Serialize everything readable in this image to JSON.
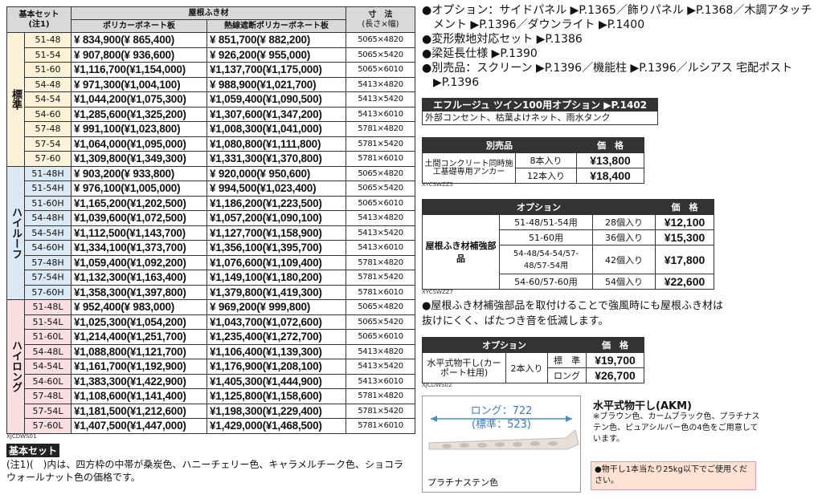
{
  "main_table": {
    "header": {
      "set": "基本セット",
      "note_ref": "(注1)",
      "roof": "屋根ふき材",
      "poly": "ポリカーボネート板",
      "heat": "熱線遮断ポリカーボネート板",
      "size": "寸　法",
      "size_unit": "(長さ×幅)"
    },
    "groups": [
      {
        "name": "標準",
        "rows": [
          [
            "51-48",
            "¥ 834,900(¥ 865,400)",
            "¥ 851,700(¥ 882,200)",
            "5065×4820"
          ],
          [
            "51-54",
            "¥ 907,800(¥ 936,600)",
            "¥ 926,200(¥ 955,000)",
            "5065×5420"
          ],
          [
            "51-60",
            "¥1,116,700(¥1,154,000)",
            "¥1,137,700(¥1,175,000)",
            "5065×6010"
          ],
          [
            "54-48",
            "¥ 971,300(¥1,004,100)",
            "¥ 988,900(¥1,021,700)",
            "5413×4820"
          ],
          [
            "54-54",
            "¥1,044,200(¥1,075,300)",
            "¥1,059,400(¥1,090,500)",
            "5413×5420"
          ],
          [
            "54-60",
            "¥1,285,600(¥1,325,200)",
            "¥1,307,600(¥1,347,200)",
            "5413×6010"
          ],
          [
            "57-48",
            "¥ 991,100(¥1,023,800)",
            "¥1,008,300(¥1,041,000)",
            "5781×4820"
          ],
          [
            "57-54",
            "¥1,064,000(¥1,095,000)",
            "¥1,080,800(¥1,111,800)",
            "5781×5420"
          ],
          [
            "57-60",
            "¥1,309,800(¥1,349,300)",
            "¥1,331,300(¥1,370,800)",
            "5781×6010"
          ]
        ]
      },
      {
        "name": "ハイルーフ",
        "rows": [
          [
            "51-48H",
            "¥ 903,200(¥ 933,800)",
            "¥ 920,000(¥ 950,600)",
            "5065×4820"
          ],
          [
            "51-54H",
            "¥ 976,100(¥1,005,000)",
            "¥ 994,500(¥1,023,400)",
            "5065×5420"
          ],
          [
            "51-60H",
            "¥1,165,200(¥1,202,500)",
            "¥1,186,200(¥1,223,500)",
            "5065×6010"
          ],
          [
            "54-48H",
            "¥1,039,600(¥1,072,500)",
            "¥1,057,200(¥1,090,100)",
            "5413×4820"
          ],
          [
            "54-54H",
            "¥1,112,500(¥1,143,700)",
            "¥1,127,700(¥1,158,900)",
            "5413×5420"
          ],
          [
            "54-60H",
            "¥1,334,100(¥1,373,700)",
            "¥1,356,100(¥1,395,700)",
            "5413×6010"
          ],
          [
            "57-48H",
            "¥1,059,400(¥1,092,200)",
            "¥1,076,600(¥1,109,400)",
            "5781×4820"
          ],
          [
            "57-54H",
            "¥1,132,300(¥1,163,400)",
            "¥1,149,100(¥1,180,200)",
            "5781×5420"
          ],
          [
            "57-60H",
            "¥1,358,300(¥1,397,800)",
            "¥1,379,800(¥1,419,300)",
            "5781×6010"
          ]
        ]
      },
      {
        "name": "ハイロング",
        "rows": [
          [
            "51-48L",
            "¥ 952,400(¥ 983,000)",
            "¥ 969,200(¥ 999,800)",
            "5065×4820"
          ],
          [
            "51-54L",
            "¥1,025,300(¥1,054,200)",
            "¥1,043,700(¥1,072,600)",
            "5065×5420"
          ],
          [
            "51-60L",
            "¥1,214,400(¥1,251,700)",
            "¥1,235,400(¥1,272,700)",
            "5065×6010"
          ],
          [
            "54-48L",
            "¥1,088,800(¥1,121,700)",
            "¥1,106,400(¥1,139,300)",
            "5413×4820"
          ],
          [
            "54-54L",
            "¥1,161,700(¥1,192,900)",
            "¥1,176,900(¥1,208,100)",
            "5413×5420"
          ],
          [
            "54-60L",
            "¥1,383,300(¥1,422,900)",
            "¥1,405,300(¥1,444,900)",
            "5413×6010"
          ],
          [
            "57-48L",
            "¥1,108,600(¥1,141,400)",
            "¥1,125,800(¥1,158,600)",
            "5781×4820"
          ],
          [
            "57-54L",
            "¥1,181,500(¥1,212,600)",
            "¥1,198,300(¥1,229,400)",
            "5781×5420"
          ],
          [
            "57-60L",
            "¥1,407,500(¥1,447,000)",
            "¥1,429,000(¥1,468,500)",
            "5781×6010"
          ]
        ]
      }
    ],
    "code": "XJCDWS01"
  },
  "basic_set_label": "基本セット",
  "note": "(注1)(　)内は、四方枠の中帯が桑炭色、ハニーチェリー色、キャラメルチーク色、ショコラウォールナット色の価格です。",
  "bullets": [
    "●オプション：サイドパネル ▶P.1365／飾りパネル ▶P.1368／木調アタッチメント ▶P.1396／ダウンライト ▶P.1400",
    "●変形敷地対応セット ▶P.1386",
    "●梁延長仕様 ▶P.1390",
    "●別売品：スクリーン ▶P.1396／機能柱 ▶P.1396／ルシアス 宅配ポスト ▶P.1396"
  ],
  "option_box": {
    "title": "エフルージュ ツイン100用オプション ▶P.1402",
    "body": "外部コンセント、枯葉よけネット、雨水タンク"
  },
  "anchor_table": {
    "header": "別売品",
    "price_header": "価　格",
    "label": "土間コンクリート同時施工基礎専用アンカー",
    "rows": [
      [
        "8本入り",
        "¥13,800"
      ],
      [
        "12本入り",
        "¥18,400"
      ]
    ],
    "code": "XYCSWZZ5"
  },
  "reinforce_table": {
    "header": "オプション",
    "price_header": "価　格",
    "label": "屋根ふき材補強部品",
    "rows": [
      [
        "51-48/51-54用",
        "28個入り",
        "¥12,100"
      ],
      [
        "51-60用",
        "36個入り",
        "¥15,300"
      ],
      [
        "54-48/54-54/57-48/57-54用",
        "42個入り",
        "¥17,800"
      ],
      [
        "54-60/57-60用",
        "54個入り",
        "¥22,600"
      ]
    ],
    "code": "XYCSWZZ7"
  },
  "reinforce_note": "●屋根ふき材補強部品を取付けることで強風時にも屋根ふき材は抜けにくく、ばたつき音を低減します。",
  "dryer_table": {
    "header": "オプション",
    "price_header": "価　格",
    "label": "水平式物干し(カーポート柱用)",
    "qty": "2本入り",
    "rows": [
      [
        "標　準",
        "¥19,700"
      ],
      [
        "ロング",
        "¥26,700"
      ]
    ],
    "code": "XJCDWS02"
  },
  "dryer_figure": {
    "long": "ロング：722",
    "standard": "(標準：523)",
    "color": "プラチナステン色"
  },
  "dryer_info": {
    "title": "水平式物干し(AKM)",
    "colors": "※ブラウン色、カームブラック色、プラチナステン色、ピュアシルバー色の4色をご用意しています。",
    "caution": "●物干し1本当たり25kg以下でご使用ください。"
  }
}
